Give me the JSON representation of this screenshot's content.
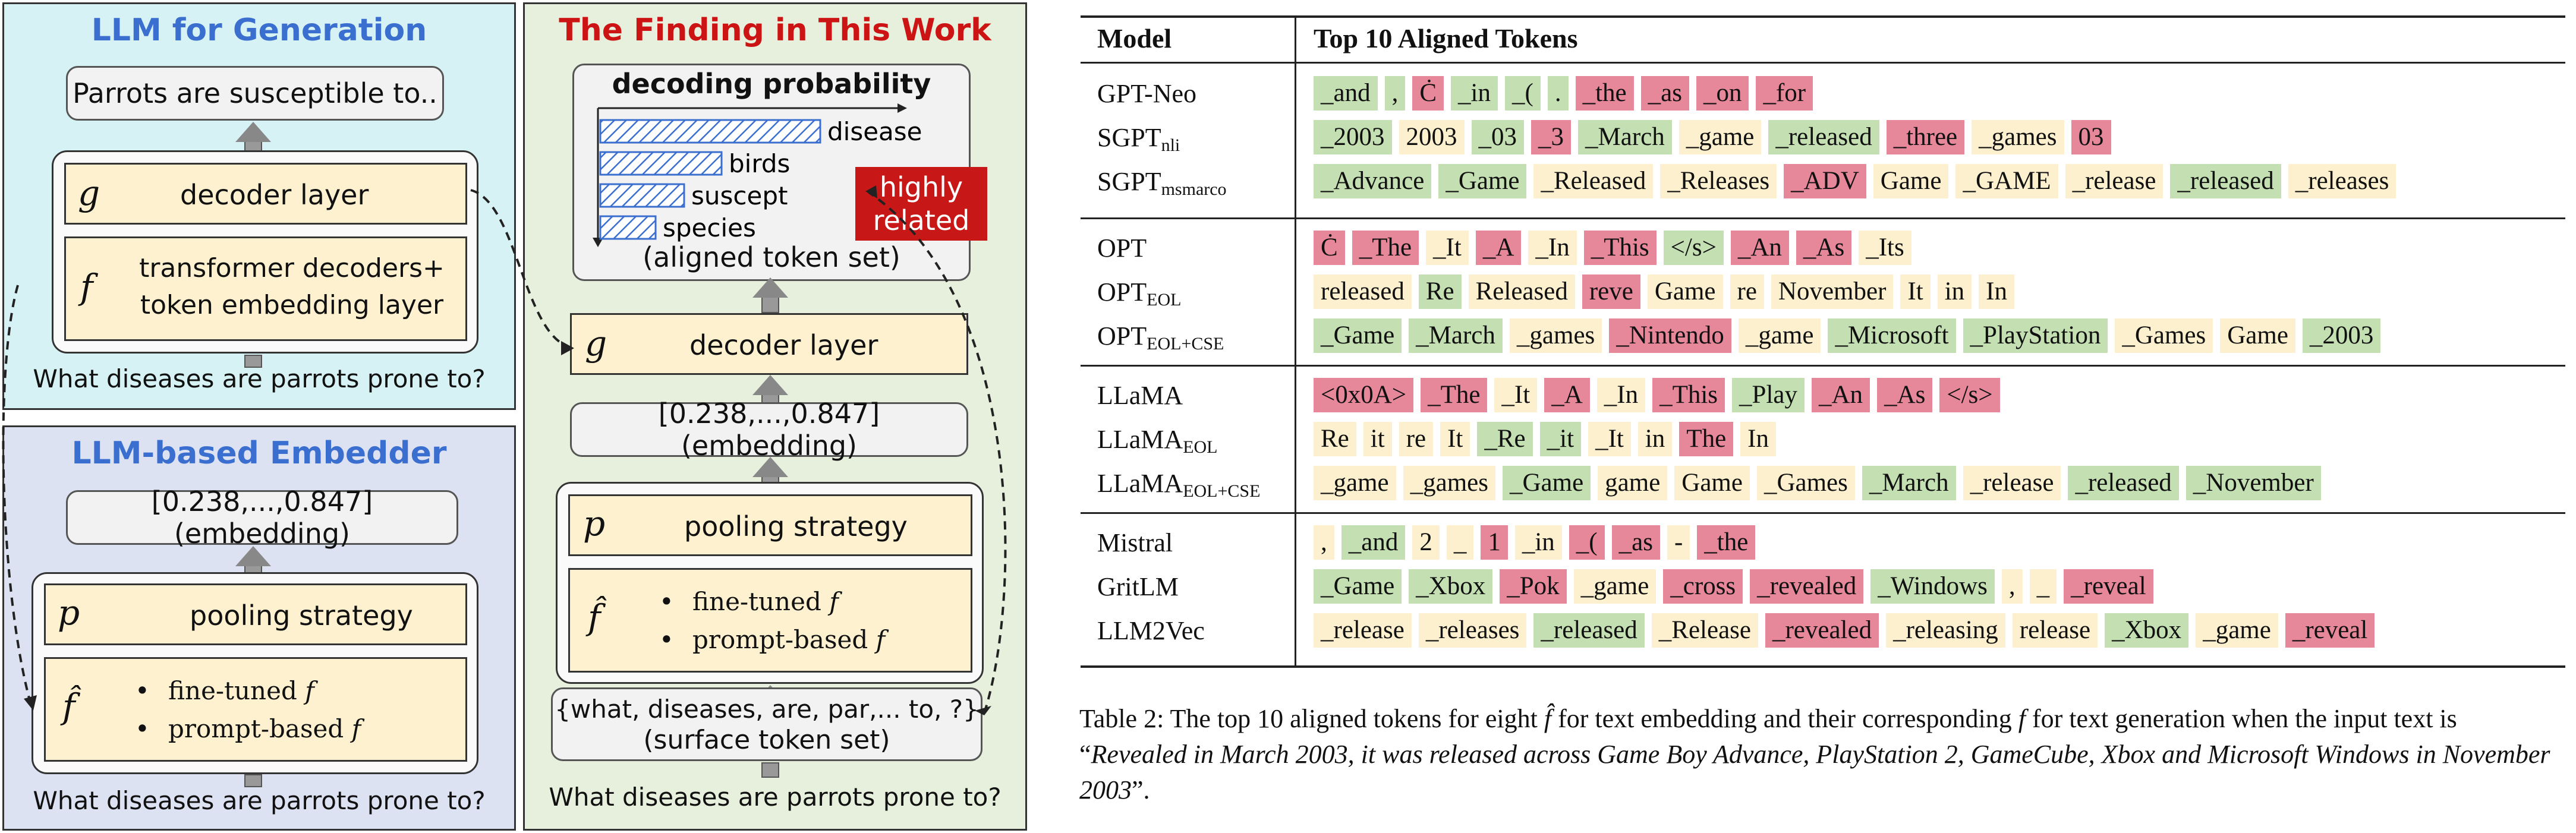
{
  "figure": {
    "left_top": {
      "title": "LLM for Generation",
      "output": "Parrots are susceptible to..",
      "g_var": "g",
      "g_label": "decoder layer",
      "f_var": "f",
      "f_line1": "transformer decoders+",
      "f_line2": "token embedding layer",
      "question": "What diseases are parrots prone to?"
    },
    "left_bottom": {
      "title": "LLM-based Embedder",
      "embedding": "[0.238,...,0.847](embedding)",
      "p_var": "p",
      "p_label": "pooling strategy",
      "fhat_var": "f̂",
      "bullet1_text": "fine-tuned ",
      "bullet1_var": "f",
      "bullet2_text": "prompt-based ",
      "bullet2_var": "f",
      "question": "What diseases are parrots prone to?"
    },
    "middle": {
      "title": "The Finding in This Work",
      "prob_title": "decoding probability",
      "prob_bars": [
        {
          "label": "disease",
          "value": 1.0
        },
        {
          "label": "birds",
          "value": 0.55
        },
        {
          "label": "suscept",
          "value": 0.38
        },
        {
          "label": "species",
          "value": 0.25
        }
      ],
      "aligned_label": "(aligned token set)",
      "callout_line1": "highly",
      "callout_line2": "related",
      "g_var": "g",
      "g_label": "decoder layer",
      "embedding": "[0.238,...,0.847](embedding)",
      "p_var": "p",
      "p_label": "pooling strategy",
      "fhat_var": "f̂",
      "bullet1_text": "fine-tuned ",
      "bullet1_var": "f",
      "bullet2_text": "prompt-based ",
      "bullet2_var": "f",
      "surface_line1": "{what, diseases, are, par,... to, ?}",
      "surface_line2": "(surface token set)",
      "question": "What diseases are parrots prone to?"
    }
  },
  "colors": {
    "green": "#c4e0b2",
    "yellow": "#fdf0cf",
    "red": "#e6879a"
  },
  "table": {
    "col_model": "Model",
    "col_tokens": "Top 10 Aligned Tokens",
    "groups": [
      {
        "rows": [
          {
            "name": "GPT-Neo",
            "sub": "",
            "tokens": [
              [
                "_and",
                "g"
              ],
              [
                ",",
                "g"
              ],
              [
                "Ċ",
                "r"
              ],
              [
                "_in",
                "g"
              ],
              [
                "_(",
                "g"
              ],
              [
                ".",
                "g"
              ],
              [
                "_the",
                "r"
              ],
              [
                "_as",
                "r"
              ],
              [
                "_on",
                "r"
              ],
              [
                "_for",
                "r"
              ]
            ]
          },
          {
            "name": "SGPT",
            "sub": "nli",
            "tokens": [
              [
                "_2003",
                "g"
              ],
              [
                "2003",
                "y"
              ],
              [
                "_03",
                "g"
              ],
              [
                "_3",
                "r"
              ],
              [
                "_March",
                "g"
              ],
              [
                "_game",
                "y"
              ],
              [
                "_released",
                "g"
              ],
              [
                "_three",
                "r"
              ],
              [
                "_games",
                "y"
              ],
              [
                "03",
                "r"
              ]
            ]
          },
          {
            "name": "SGPT",
            "sub": "msmarco",
            "tokens": [
              [
                "_Advance",
                "g"
              ],
              [
                "_Game",
                "g"
              ],
              [
                "_Released",
                "y"
              ],
              [
                "_Releases",
                "y"
              ],
              [
                "_ADV",
                "r"
              ],
              [
                "Game",
                "y"
              ],
              [
                "_GAME",
                "y"
              ],
              [
                "_release",
                "y"
              ],
              [
                "_released",
                "g"
              ],
              [
                "_releases",
                "y"
              ]
            ]
          }
        ]
      },
      {
        "rows": [
          {
            "name": "OPT",
            "sub": "",
            "tokens": [
              [
                "Ċ",
                "r"
              ],
              [
                "_The",
                "r"
              ],
              [
                "_It",
                "y"
              ],
              [
                "_A",
                "r"
              ],
              [
                "_In",
                "y"
              ],
              [
                "_This",
                "r"
              ],
              [
                "</s>",
                "g"
              ],
              [
                "_An",
                "r"
              ],
              [
                "_As",
                "r"
              ],
              [
                "_Its",
                "y"
              ]
            ]
          },
          {
            "name": "OPT",
            "sub": "EOL",
            "tokens": [
              [
                "released",
                "y"
              ],
              [
                "Re",
                "g"
              ],
              [
                "Released",
                "y"
              ],
              [
                "reve",
                "r"
              ],
              [
                "Game",
                "y"
              ],
              [
                "re",
                "y"
              ],
              [
                "November",
                "y"
              ],
              [
                "It",
                "y"
              ],
              [
                "in",
                "y"
              ],
              [
                "In",
                "y"
              ]
            ]
          },
          {
            "name": "OPT",
            "sub": "EOL+CSE",
            "tokens": [
              [
                "_Game",
                "g"
              ],
              [
                "_March",
                "g"
              ],
              [
                "_games",
                "y"
              ],
              [
                "_Nintendo",
                "r"
              ],
              [
                "_game",
                "y"
              ],
              [
                "_Microsoft",
                "g"
              ],
              [
                "_PlayStation",
                "g"
              ],
              [
                "_Games",
                "y"
              ],
              [
                "Game",
                "y"
              ],
              [
                "_2003",
                "g"
              ]
            ]
          }
        ]
      },
      {
        "rows": [
          {
            "name": "LLaMA",
            "sub": "",
            "tokens": [
              [
                "<0x0A>",
                "r"
              ],
              [
                "_The",
                "r"
              ],
              [
                "_It",
                "y"
              ],
              [
                "_A",
                "r"
              ],
              [
                "_In",
                "y"
              ],
              [
                "_This",
                "r"
              ],
              [
                "_Play",
                "g"
              ],
              [
                "_An",
                "r"
              ],
              [
                "_As",
                "r"
              ],
              [
                "</s>",
                "r"
              ]
            ]
          },
          {
            "name": "LLaMA",
            "sub": "EOL",
            "tokens": [
              [
                "Re",
                "y"
              ],
              [
                "it",
                "y"
              ],
              [
                "re",
                "y"
              ],
              [
                "It",
                "y"
              ],
              [
                "_Re",
                "g"
              ],
              [
                "_it",
                "g"
              ],
              [
                "_It",
                "y"
              ],
              [
                "in",
                "y"
              ],
              [
                "The",
                "r"
              ],
              [
                "In",
                "y"
              ]
            ]
          },
          {
            "name": "LLaMA",
            "sub": "EOL+CSE",
            "tokens": [
              [
                "_game",
                "y"
              ],
              [
                "_games",
                "y"
              ],
              [
                "_Game",
                "g"
              ],
              [
                "game",
                "y"
              ],
              [
                "Game",
                "y"
              ],
              [
                "_Games",
                "y"
              ],
              [
                "_March",
                "g"
              ],
              [
                "_release",
                "y"
              ],
              [
                "_released",
                "g"
              ],
              [
                "_November",
                "g"
              ]
            ]
          }
        ]
      },
      {
        "rows": [
          {
            "name": "Mistral",
            "sub": "",
            "tokens": [
              [
                ",",
                "y"
              ],
              [
                "_and",
                "g"
              ],
              [
                "2",
                "y"
              ],
              [
                "_",
                "y"
              ],
              [
                "1",
                "r"
              ],
              [
                "_in",
                "y"
              ],
              [
                "_(",
                "r"
              ],
              [
                "_as",
                "r"
              ],
              [
                "-",
                "y"
              ],
              [
                "_the",
                "r"
              ]
            ]
          },
          {
            "name": "GritLM",
            "sub": "",
            "tokens": [
              [
                "_Game",
                "g"
              ],
              [
                "_Xbox",
                "g"
              ],
              [
                "_Pok",
                "r"
              ],
              [
                "_game",
                "y"
              ],
              [
                "_cross",
                "r"
              ],
              [
                "_revealed",
                "r"
              ],
              [
                "_Windows",
                "g"
              ],
              [
                ",",
                "y"
              ],
              [
                "_",
                "y"
              ],
              [
                "_reveal",
                "r"
              ]
            ]
          },
          {
            "name": "LLM2Vec",
            "sub": "",
            "tokens": [
              [
                "_release",
                "y"
              ],
              [
                "_releases",
                "y"
              ],
              [
                "_released",
                "g"
              ],
              [
                "_Release",
                "y"
              ],
              [
                "_revealed",
                "r"
              ],
              [
                "_releasing",
                "y"
              ],
              [
                "release",
                "y"
              ],
              [
                "_Xbox",
                "g"
              ],
              [
                "_game",
                "y"
              ],
              [
                "_reveal",
                "r"
              ]
            ]
          }
        ]
      }
    ]
  },
  "caption": {
    "part1": "Table 2: The top 10 aligned tokens for eight ",
    "fhat": "f̂",
    "part2": " for text embedding and their corresponding ",
    "f": "f",
    "part3": " for text generation when the input text is “",
    "quote": "Revealed in March 2003, it was released across Game Boy Advance, PlayStation 2, GameCube, Xbox and Microsoft Windows in November 2003",
    "part4": "”."
  }
}
